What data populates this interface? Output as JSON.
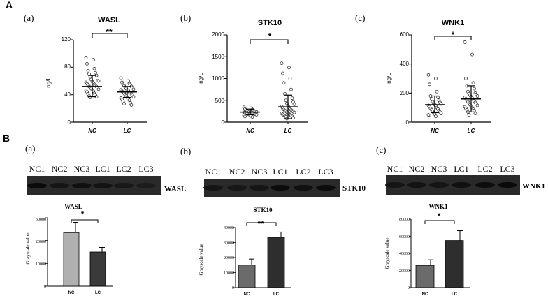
{
  "section_a": {
    "letter": "A",
    "panels": [
      {
        "label": "(a)",
        "title": "WASL",
        "ylabel": "ng/L",
        "sig": "**",
        "ticks": [
          "0",
          "40",
          "80",
          "120"
        ]
      },
      {
        "label": "(b)",
        "title": "STK10",
        "ylabel": "ng/L",
        "sig": "*",
        "ticks": [
          "0",
          "500",
          "1000",
          "1500",
          "2000"
        ]
      },
      {
        "label": "(c)",
        "title": "WNK1",
        "ylabel": "ng/L",
        "sig": "*",
        "ticks": [
          "0",
          "200",
          "400",
          "600"
        ]
      }
    ]
  },
  "section_b": {
    "letter": "B",
    "blots": [
      {
        "label": "(a)",
        "lanes": [
          "NC1",
          "NC2",
          "NC3",
          "LC1",
          "LC2",
          "LC3"
        ],
        "protein": "WASL"
      },
      {
        "label": "(b)",
        "lanes": [
          "NC1",
          "NC2",
          "NC3",
          "LC1",
          "LC2",
          "LC3"
        ],
        "protein": "STK10"
      },
      {
        "label": "(c)",
        "lanes": [
          "NC1",
          "NC2",
          "NC3",
          "LC1",
          "LC2",
          "LC3"
        ],
        "protein": "WNK1"
      }
    ],
    "bars": [
      {
        "title": "WASL",
        "sig": "*",
        "ylabel": "Grayscale value",
        "ticks": [
          "0",
          "10000",
          "20000",
          "30000"
        ]
      },
      {
        "title": "STK10",
        "sig": "**",
        "ylabel": "Grayscale value",
        "ticks": [
          "0",
          "10000",
          "20000",
          "30000",
          "40000"
        ]
      },
      {
        "title": "WNK1",
        "sig": "*",
        "ylabel": "Grayscale value",
        "ticks": [
          "0",
          "20000",
          "40000",
          "60000",
          "80000"
        ]
      }
    ]
  },
  "chart_data": [
    {
      "type": "scatter",
      "title": "WASL",
      "ylabel": "ng/L",
      "categories": [
        "NC",
        "LC"
      ],
      "ylim": [
        0,
        120
      ],
      "series": [
        {
          "name": "NC",
          "mean": 52,
          "sd_low": 37,
          "sd_high": 68,
          "values": [
            94,
            91,
            85,
            78,
            75,
            72,
            70,
            68,
            66,
            64,
            62,
            60,
            59,
            58,
            57,
            56,
            55,
            54,
            53,
            52,
            52,
            51,
            50,
            49,
            48,
            47,
            46,
            45,
            44,
            42,
            41,
            40,
            38,
            37,
            36
          ]
        },
        {
          "name": "LC",
          "mean": 44,
          "sd_low": 36,
          "sd_high": 52,
          "values": [
            64,
            60,
            58,
            56,
            55,
            54,
            53,
            52,
            51,
            50,
            49,
            48,
            47,
            47,
            46,
            45,
            44,
            44,
            43,
            42,
            41,
            40,
            39,
            38,
            37,
            36,
            35,
            34,
            33,
            32,
            30,
            28,
            27,
            25
          ]
        }
      ]
    },
    {
      "type": "scatter",
      "title": "STK10",
      "ylabel": "ng/L",
      "categories": [
        "NC",
        "LC"
      ],
      "ylim": [
        0,
        2000
      ],
      "series": [
        {
          "name": "NC",
          "mean": 230,
          "sd_low": 170,
          "sd_high": 300,
          "values": [
            340,
            320,
            300,
            290,
            280,
            270,
            260,
            255,
            250,
            245,
            240,
            235,
            230,
            225,
            220,
            215,
            210,
            205,
            200,
            195,
            190,
            185,
            180,
            175,
            170,
            160,
            150,
            140,
            130,
            120
          ]
        },
        {
          "name": "LC",
          "mean": 350,
          "sd_low": 80,
          "sd_high": 620,
          "values": [
            1350,
            1250,
            1120,
            1000,
            900,
            750,
            650,
            550,
            500,
            460,
            430,
            410,
            380,
            360,
            340,
            320,
            300,
            290,
            280,
            270,
            260,
            250,
            240,
            230,
            220,
            210,
            200,
            190,
            180,
            170,
            160,
            150,
            140,
            130,
            120,
            100,
            80
          ]
        }
      ]
    },
    {
      "type": "scatter",
      "title": "WNK1",
      "ylabel": "ng/L",
      "categories": [
        "NC",
        "LC"
      ],
      "ylim": [
        0,
        600
      ],
      "series": [
        {
          "name": "NC",
          "mean": 120,
          "sd_low": 65,
          "sd_high": 180,
          "values": [
            325,
            300,
            260,
            210,
            180,
            170,
            160,
            150,
            140,
            135,
            130,
            125,
            120,
            115,
            110,
            105,
            100,
            95,
            90,
            85,
            80,
            75,
            70,
            65,
            60,
            55,
            50,
            40,
            30
          ]
        },
        {
          "name": "LC",
          "mean": 160,
          "sd_low": 70,
          "sd_high": 250,
          "values": [
            550,
            465,
            300,
            270,
            250,
            230,
            210,
            200,
            195,
            190,
            185,
            180,
            175,
            170,
            165,
            160,
            155,
            150,
            145,
            140,
            135,
            130,
            125,
            120,
            115,
            110,
            105,
            100,
            95,
            90,
            85,
            80,
            70,
            60,
            50
          ]
        }
      ]
    },
    {
      "type": "bar",
      "title": "WASL",
      "ylabel": "Grayscale value",
      "categories": [
        "NC",
        "LC"
      ],
      "ylim": [
        0,
        30000
      ],
      "values": [
        23500,
        15000
      ],
      "errors": [
        4500,
        2000
      ],
      "colors": [
        "#b0b0b0",
        "#3a3a3a"
      ]
    },
    {
      "type": "bar",
      "title": "STK10",
      "ylabel": "Grayscale value",
      "categories": [
        "NC",
        "LC"
      ],
      "ylim": [
        0,
        40000
      ],
      "values": [
        15000,
        33500
      ],
      "errors": [
        4000,
        3500
      ],
      "colors": [
        "#6b6b6b",
        "#2e2e2e"
      ]
    },
    {
      "type": "bar",
      "title": "WNK1",
      "ylabel": "Grayscale value",
      "categories": [
        "NC",
        "LC"
      ],
      "ylim": [
        0,
        80000
      ],
      "values": [
        26000,
        55000
      ],
      "errors": [
        6500,
        11500
      ],
      "colors": [
        "#6b6b6b",
        "#2e2e2e"
      ]
    }
  ]
}
